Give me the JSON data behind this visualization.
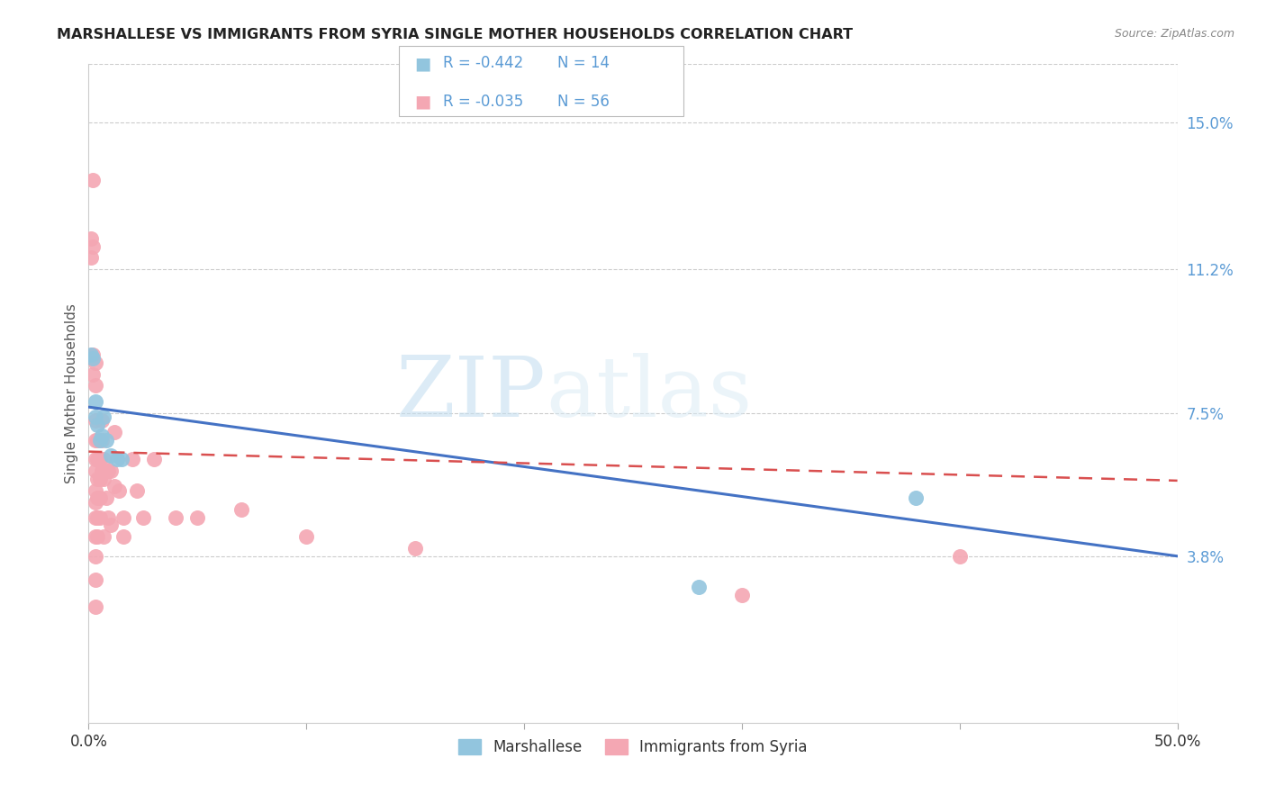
{
  "title": "MARSHALLESE VS IMMIGRANTS FROM SYRIA SINGLE MOTHER HOUSEHOLDS CORRELATION CHART",
  "source": "Source: ZipAtlas.com",
  "ylabel": "Single Mother Households",
  "ytick_labels": [
    "15.0%",
    "11.2%",
    "7.5%",
    "3.8%"
  ],
  "ytick_values": [
    0.15,
    0.112,
    0.075,
    0.038
  ],
  "xlim": [
    0.0,
    0.5
  ],
  "ylim": [
    -0.005,
    0.165
  ],
  "legend_blue_r": "-0.442",
  "legend_blue_n": "14",
  "legend_pink_r": "-0.035",
  "legend_pink_n": "56",
  "legend_blue_label": "Marshallese",
  "legend_pink_label": "Immigrants from Syria",
  "blue_color": "#92C5DE",
  "pink_color": "#F4A7B3",
  "trendline_blue_color": "#4472C4",
  "trendline_pink_color": "#D94F4F",
  "watermark_zip": "ZIP",
  "watermark_atlas": "atlas",
  "blue_points": [
    [
      0.001,
      0.09
    ],
    [
      0.002,
      0.089
    ],
    [
      0.003,
      0.078
    ],
    [
      0.003,
      0.074
    ],
    [
      0.004,
      0.072
    ],
    [
      0.005,
      0.068
    ],
    [
      0.006,
      0.069
    ],
    [
      0.007,
      0.074
    ],
    [
      0.008,
      0.068
    ],
    [
      0.01,
      0.064
    ],
    [
      0.013,
      0.063
    ],
    [
      0.015,
      0.063
    ],
    [
      0.38,
      0.053
    ],
    [
      0.28,
      0.03
    ]
  ],
  "pink_points": [
    [
      0.001,
      0.12
    ],
    [
      0.001,
      0.115
    ],
    [
      0.002,
      0.135
    ],
    [
      0.002,
      0.118
    ],
    [
      0.002,
      0.09
    ],
    [
      0.002,
      0.085
    ],
    [
      0.003,
      0.088
    ],
    [
      0.003,
      0.082
    ],
    [
      0.003,
      0.073
    ],
    [
      0.003,
      0.068
    ],
    [
      0.003,
      0.063
    ],
    [
      0.003,
      0.06
    ],
    [
      0.003,
      0.055
    ],
    [
      0.003,
      0.052
    ],
    [
      0.003,
      0.048
    ],
    [
      0.003,
      0.043
    ],
    [
      0.003,
      0.038
    ],
    [
      0.003,
      0.032
    ],
    [
      0.003,
      0.025
    ],
    [
      0.004,
      0.068
    ],
    [
      0.004,
      0.063
    ],
    [
      0.004,
      0.058
    ],
    [
      0.004,
      0.053
    ],
    [
      0.004,
      0.048
    ],
    [
      0.004,
      0.043
    ],
    [
      0.005,
      0.063
    ],
    [
      0.005,
      0.058
    ],
    [
      0.005,
      0.053
    ],
    [
      0.005,
      0.048
    ],
    [
      0.006,
      0.073
    ],
    [
      0.006,
      0.068
    ],
    [
      0.006,
      0.06
    ],
    [
      0.007,
      0.063
    ],
    [
      0.007,
      0.058
    ],
    [
      0.007,
      0.043
    ],
    [
      0.008,
      0.053
    ],
    [
      0.009,
      0.06
    ],
    [
      0.009,
      0.048
    ],
    [
      0.01,
      0.06
    ],
    [
      0.01,
      0.046
    ],
    [
      0.012,
      0.07
    ],
    [
      0.012,
      0.056
    ],
    [
      0.014,
      0.055
    ],
    [
      0.016,
      0.048
    ],
    [
      0.016,
      0.043
    ],
    [
      0.02,
      0.063
    ],
    [
      0.022,
      0.055
    ],
    [
      0.025,
      0.048
    ],
    [
      0.03,
      0.063
    ],
    [
      0.04,
      0.048
    ],
    [
      0.05,
      0.048
    ],
    [
      0.07,
      0.05
    ],
    [
      0.1,
      0.043
    ],
    [
      0.15,
      0.04
    ],
    [
      0.3,
      0.028
    ],
    [
      0.4,
      0.038
    ]
  ],
  "blue_trendline": [
    [
      0.0,
      0.0765
    ],
    [
      0.5,
      0.038
    ]
  ],
  "pink_trendline": [
    [
      0.0,
      0.065
    ],
    [
      0.5,
      0.0575
    ]
  ]
}
